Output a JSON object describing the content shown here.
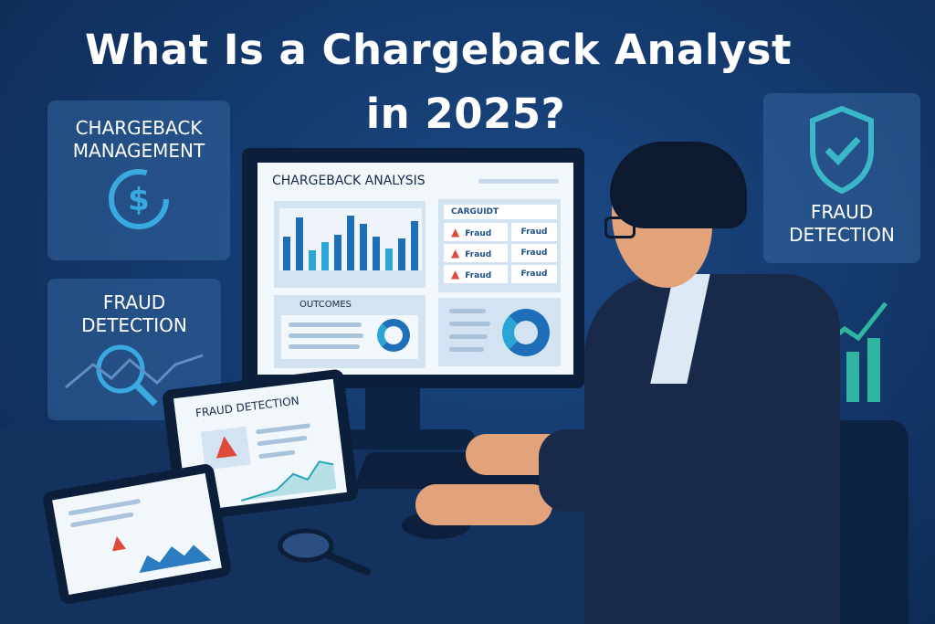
{
  "title": {
    "line1": "What Is a Chargeback Analyst",
    "line2": "in 2025?"
  },
  "left_cards": [
    {
      "label": "CHARGEBACK MANAGEMENT",
      "icon": "dollar-cycle-icon"
    },
    {
      "label": "FRAUD DETECTION",
      "icon": "magnifier-network-icon"
    }
  ],
  "right_card": {
    "label": "FRAUD DETECTION",
    "icon": "shield-check-icon"
  },
  "monitor": {
    "heading": "CHARGEBACK ANALYSIS",
    "table_title": "CARGUIDT",
    "rows": [
      [
        "Fraud",
        "Fraud"
      ],
      [
        "Fraud",
        "Fraud"
      ],
      [
        "Fraud",
        "Fraud"
      ]
    ],
    "outcomes": "OUTCOMES",
    "bars": [
      55,
      85,
      32,
      45,
      58,
      88,
      75,
      55,
      35,
      52,
      80
    ]
  },
  "tablet": {
    "heading": "FRAUD DETECTION"
  },
  "colors": {
    "accent": "#1f6fb8",
    "teal": "#2fb5a0",
    "alert": "#e04a3a"
  }
}
